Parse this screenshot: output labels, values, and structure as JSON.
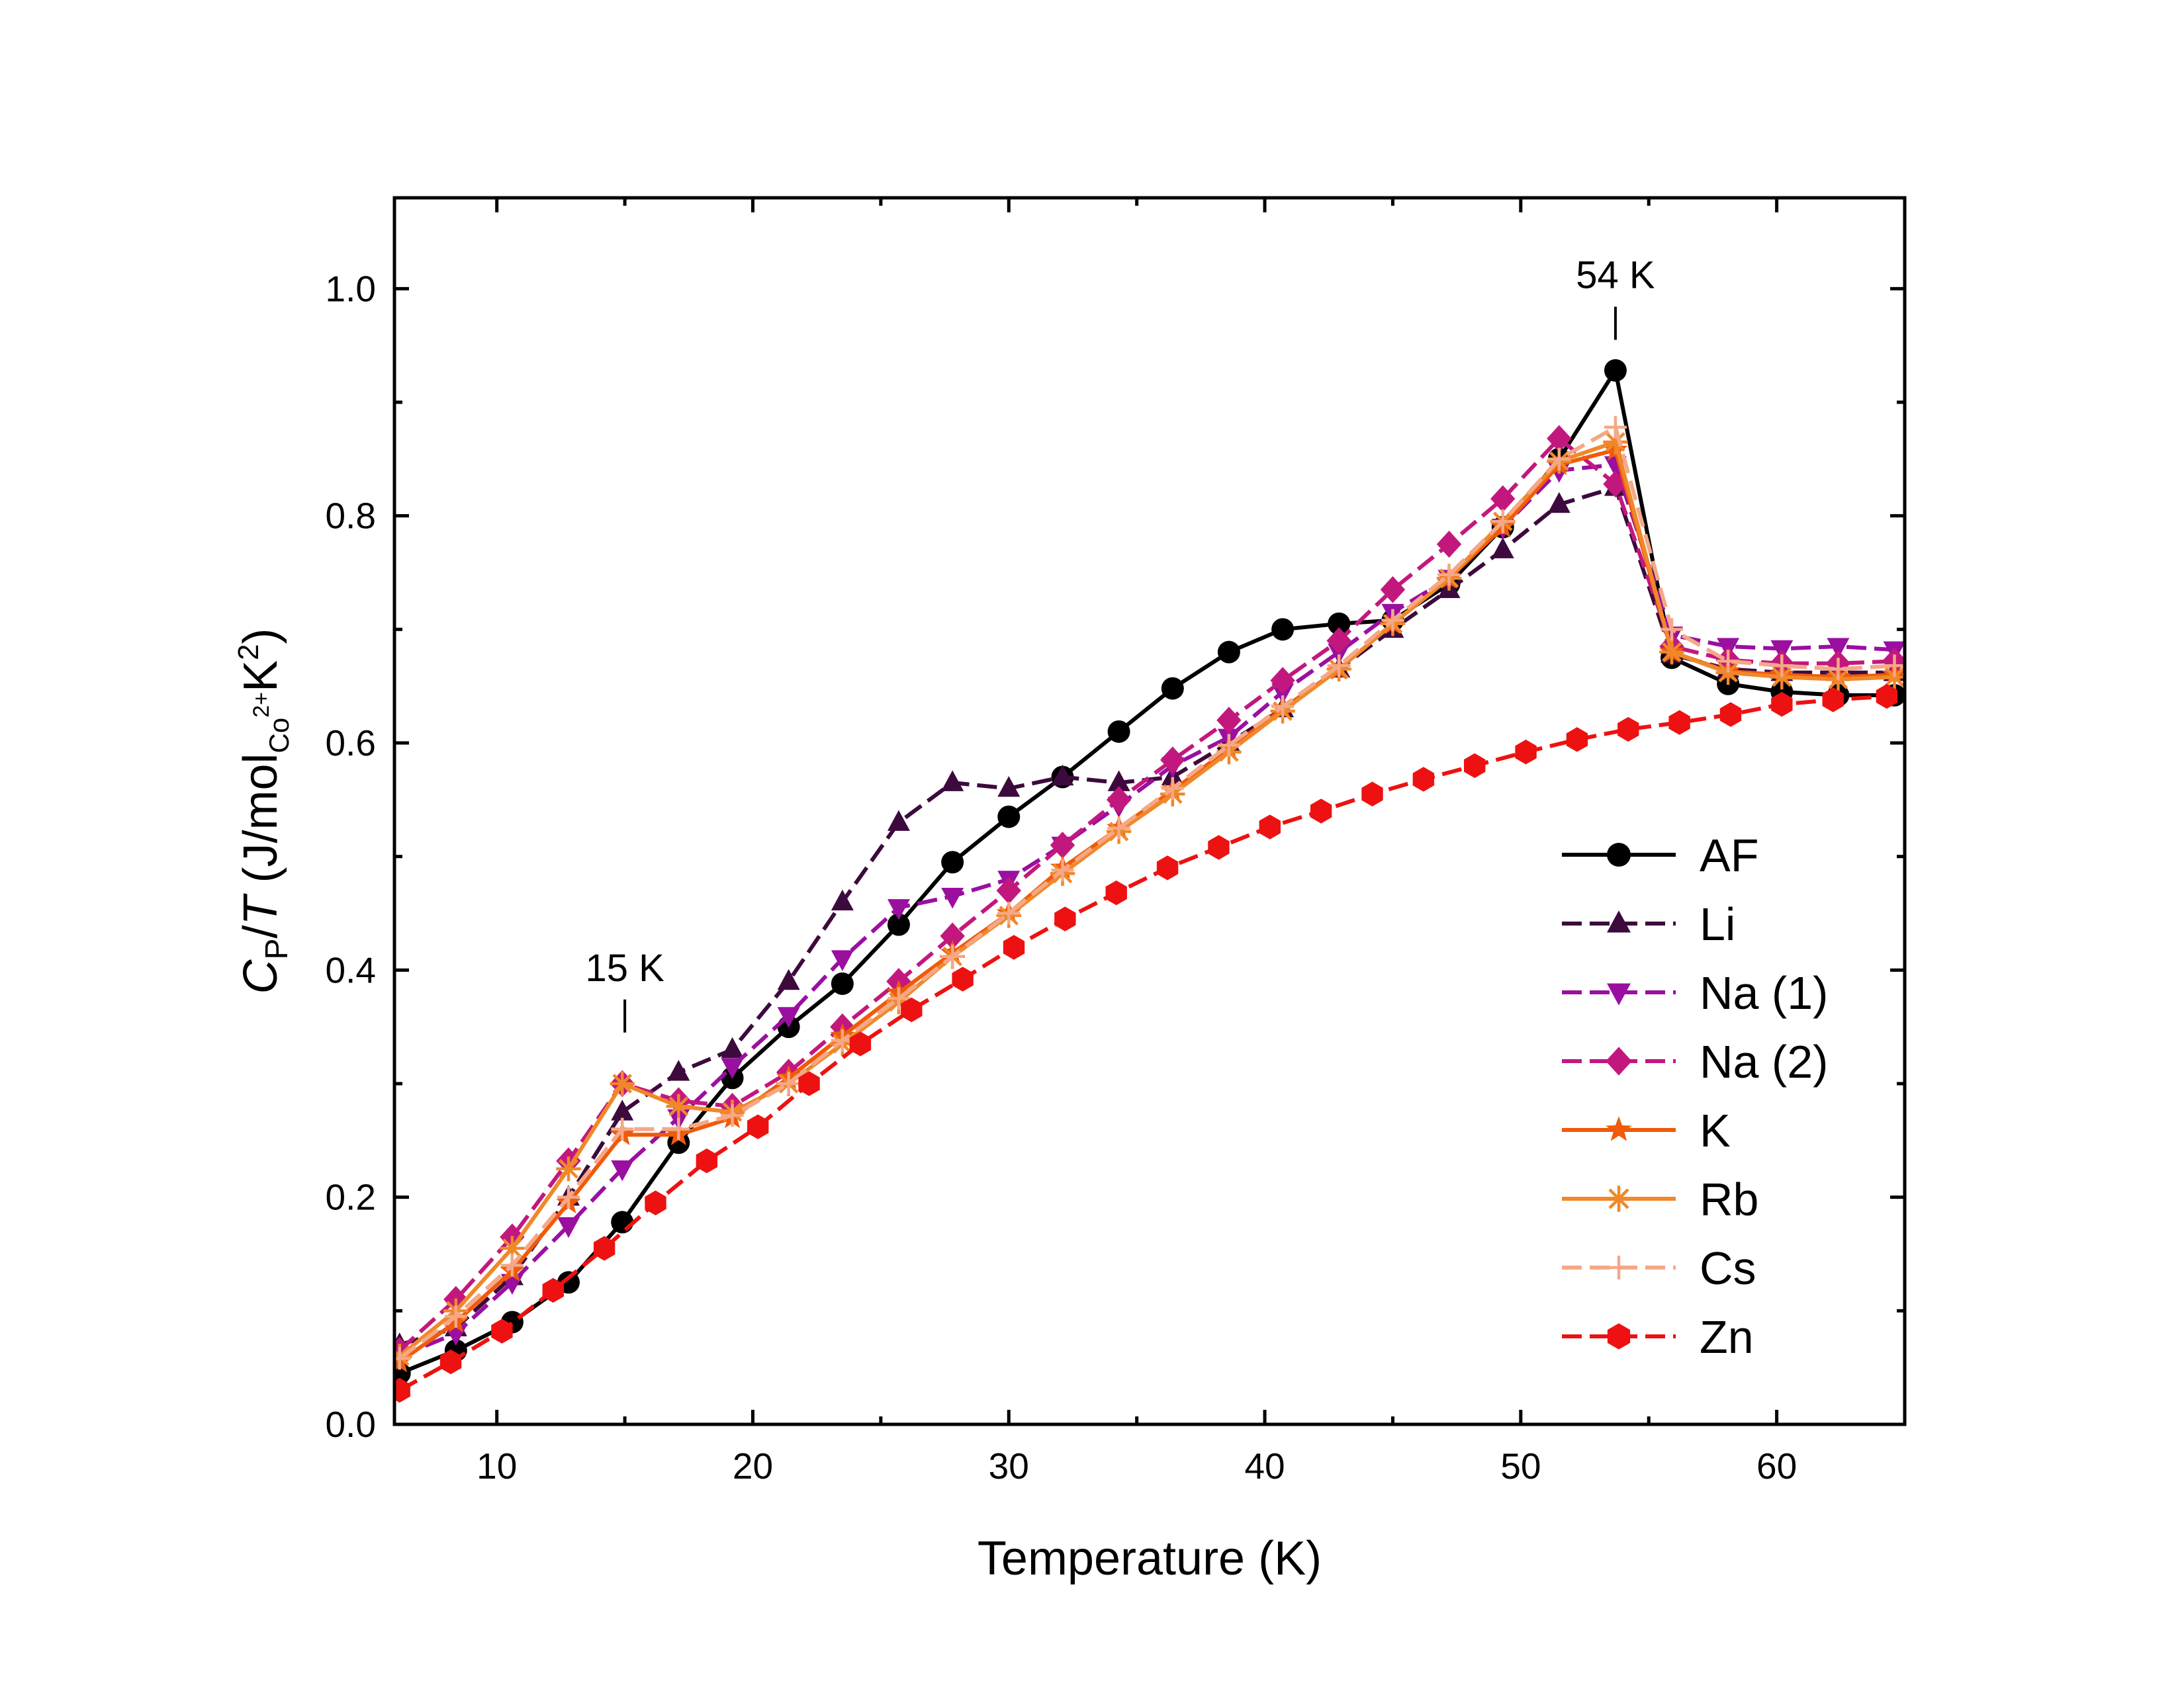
{
  "chart_data": {
    "type": "line",
    "xlabel": "Temperature (K)",
    "ylabel": {
      "main": "C",
      "sub_P": "P",
      "slash": "/",
      "T": "T",
      "unit_open": " (J/mol",
      "sub_Co": "Co",
      "sup_2plus": "2+",
      "unit_K": "K",
      "sup_2": "2",
      "unit_close": ")"
    },
    "xlim": [
      6,
      65
    ],
    "ylim": [
      0.0,
      1.08
    ],
    "xticks": [
      10,
      20,
      30,
      40,
      50,
      60
    ],
    "xtick_labels": [
      "10",
      "20",
      "30",
      "40",
      "50",
      "60"
    ],
    "yticks": [
      0.0,
      0.2,
      0.4,
      0.6,
      0.8,
      1.0
    ],
    "ytick_labels": [
      "0.0",
      "0.2",
      "0.4",
      "0.6",
      "0.8",
      "1.0"
    ],
    "grid": false,
    "legend_position": "lower-right",
    "annotations": [
      {
        "text": "54 K",
        "x": 53.7,
        "y": 0.955
      },
      {
        "text": "15 K",
        "x": 15.0,
        "y": 0.345
      }
    ],
    "series": [
      {
        "name": "AF",
        "color": "#000000",
        "marker": "circle",
        "dash": "solid",
        "x": [
          6.2,
          8.4,
          10.6,
          12.8,
          14.9,
          17.1,
          19.2,
          21.4,
          23.5,
          25.7,
          27.8,
          30.0,
          32.1,
          34.3,
          36.4,
          38.6,
          40.7,
          42.9,
          45.0,
          47.2,
          49.3,
          51.5,
          53.7,
          55.9,
          58.1,
          60.2,
          62.4,
          64.6
        ],
        "y": [
          0.045,
          0.065,
          0.09,
          0.125,
          0.178,
          0.248,
          0.305,
          0.35,
          0.388,
          0.44,
          0.495,
          0.535,
          0.57,
          0.61,
          0.648,
          0.68,
          0.7,
          0.705,
          0.708,
          0.74,
          0.79,
          0.85,
          0.928,
          0.675,
          0.652,
          0.645,
          0.642,
          0.642
        ]
      },
      {
        "name": "Li",
        "color": "#3d0a3d",
        "marker": "triangle-up",
        "dash": "dashed",
        "x": [
          6.2,
          8.4,
          10.6,
          12.8,
          14.9,
          17.1,
          19.2,
          21.4,
          23.5,
          25.7,
          27.8,
          30.0,
          32.1,
          34.3,
          36.4,
          38.6,
          40.7,
          42.9,
          45.0,
          47.2,
          49.3,
          51.5,
          53.7,
          55.9,
          58.1,
          60.2,
          62.4,
          64.6
        ],
        "y": [
          0.07,
          0.085,
          0.13,
          0.2,
          0.275,
          0.31,
          0.33,
          0.39,
          0.46,
          0.53,
          0.565,
          0.56,
          0.57,
          0.565,
          0.57,
          0.6,
          0.63,
          0.665,
          0.7,
          0.735,
          0.77,
          0.81,
          0.825,
          0.678,
          0.665,
          0.662,
          0.662,
          0.662
        ]
      },
      {
        "name": "Na (1)",
        "color": "#9a0fa0",
        "marker": "triangle-down",
        "dash": "dashed",
        "x": [
          6.2,
          8.4,
          10.6,
          12.8,
          14.9,
          17.1,
          19.2,
          21.4,
          23.5,
          25.7,
          27.8,
          30.0,
          32.1,
          34.3,
          36.4,
          38.6,
          40.7,
          42.9,
          45.0,
          47.2,
          49.3,
          51.5,
          53.7,
          55.9,
          58.1,
          60.2,
          62.4,
          64.6
        ],
        "y": [
          0.06,
          0.08,
          0.125,
          0.175,
          0.225,
          0.27,
          0.315,
          0.36,
          0.41,
          0.455,
          0.465,
          0.48,
          0.51,
          0.545,
          0.58,
          0.605,
          0.645,
          0.68,
          0.715,
          0.745,
          0.79,
          0.84,
          0.845,
          0.695,
          0.685,
          0.683,
          0.685,
          0.682
        ]
      },
      {
        "name": "Na (2)",
        "color": "#c2187e",
        "marker": "diamond",
        "dash": "dashed",
        "x": [
          6.2,
          8.4,
          10.6,
          12.8,
          14.9,
          17.1,
          19.2,
          21.4,
          23.5,
          25.7,
          27.8,
          30.0,
          32.1,
          34.3,
          36.4,
          38.6,
          40.7,
          42.9,
          45.0,
          47.2,
          49.3,
          51.5,
          53.7,
          55.9,
          58.1,
          60.2,
          62.4,
          64.6
        ],
        "y": [
          0.065,
          0.11,
          0.165,
          0.232,
          0.3,
          0.285,
          0.28,
          0.31,
          0.35,
          0.39,
          0.43,
          0.47,
          0.51,
          0.55,
          0.585,
          0.62,
          0.655,
          0.69,
          0.735,
          0.775,
          0.815,
          0.868,
          0.828,
          0.685,
          0.673,
          0.67,
          0.67,
          0.672
        ]
      },
      {
        "name": "K",
        "color": "#f05a0a",
        "marker": "star",
        "dash": "solid",
        "x": [
          6.2,
          8.4,
          10.6,
          12.8,
          14.9,
          17.1,
          19.2,
          21.4,
          23.5,
          25.7,
          27.8,
          30.0,
          32.1,
          34.3,
          36.4,
          38.6,
          40.7,
          42.9,
          45.0,
          47.2,
          49.3,
          51.5,
          53.7,
          55.9,
          58.1,
          60.2,
          62.4,
          64.6
        ],
        "y": [
          0.055,
          0.09,
          0.135,
          0.195,
          0.255,
          0.255,
          0.27,
          0.305,
          0.342,
          0.38,
          0.415,
          0.45,
          0.49,
          0.525,
          0.558,
          0.595,
          0.63,
          0.665,
          0.705,
          0.745,
          0.79,
          0.845,
          0.858,
          0.68,
          0.663,
          0.66,
          0.658,
          0.66
        ]
      },
      {
        "name": "Rb",
        "color": "#f0882a",
        "marker": "asterisk",
        "dash": "solid",
        "x": [
          6.2,
          8.4,
          10.6,
          12.8,
          14.9,
          17.1,
          19.2,
          21.4,
          23.5,
          25.7,
          27.8,
          30.0,
          32.1,
          34.3,
          36.4,
          38.6,
          40.7,
          42.9,
          45.0,
          47.2,
          49.3,
          51.5,
          53.7,
          55.9,
          58.1,
          60.2,
          62.4,
          64.6
        ],
        "y": [
          0.06,
          0.1,
          0.155,
          0.225,
          0.3,
          0.28,
          0.275,
          0.3,
          0.335,
          0.372,
          0.412,
          0.448,
          0.485,
          0.522,
          0.555,
          0.592,
          0.628,
          0.665,
          0.705,
          0.745,
          0.795,
          0.848,
          0.865,
          0.68,
          0.662,
          0.658,
          0.656,
          0.658
        ]
      },
      {
        "name": "Cs",
        "color": "#f5a887",
        "marker": "plus",
        "dash": "dashed",
        "x": [
          6.2,
          8.4,
          10.6,
          12.8,
          14.9,
          17.1,
          19.2,
          21.4,
          23.5,
          25.7,
          27.8,
          30.0,
          32.1,
          34.3,
          36.4,
          38.6,
          40.7,
          42.9,
          45.0,
          47.2,
          49.3,
          51.5,
          53.7,
          55.9,
          58.1,
          60.2,
          62.4,
          64.6
        ],
        "y": [
          0.058,
          0.095,
          0.14,
          0.2,
          0.26,
          0.26,
          0.272,
          0.3,
          0.338,
          0.375,
          0.412,
          0.45,
          0.488,
          0.525,
          0.56,
          0.598,
          0.632,
          0.668,
          0.708,
          0.748,
          0.795,
          0.85,
          0.878,
          0.7,
          0.672,
          0.668,
          0.665,
          0.668
        ]
      },
      {
        "name": "Zn",
        "color": "#ee1111",
        "marker": "hexagon",
        "dash": "dashed",
        "x": [
          6.2,
          8.2,
          10.2,
          12.2,
          14.2,
          16.2,
          18.2,
          20.2,
          22.2,
          24.2,
          26.2,
          28.2,
          30.2,
          32.2,
          34.2,
          36.2,
          38.2,
          40.2,
          42.2,
          44.2,
          46.2,
          48.2,
          50.2,
          52.2,
          54.2,
          56.2,
          58.2,
          60.2,
          62.2,
          64.3
        ],
        "y": [
          0.03,
          0.055,
          0.082,
          0.118,
          0.155,
          0.195,
          0.232,
          0.262,
          0.3,
          0.335,
          0.365,
          0.392,
          0.42,
          0.445,
          0.468,
          0.49,
          0.508,
          0.526,
          0.54,
          0.555,
          0.568,
          0.58,
          0.592,
          0.603,
          0.612,
          0.618,
          0.625,
          0.634,
          0.638,
          0.641
        ]
      }
    ]
  }
}
